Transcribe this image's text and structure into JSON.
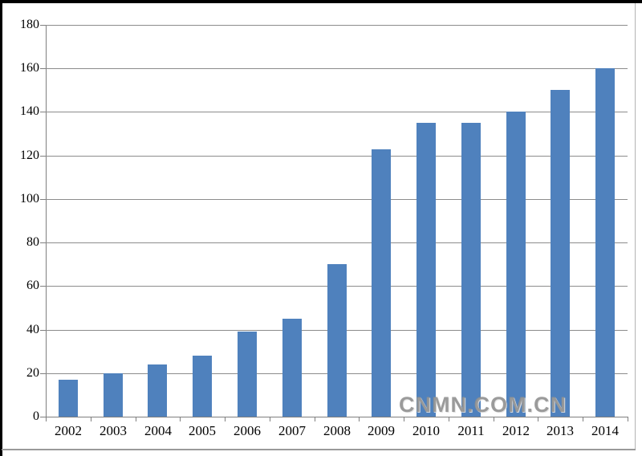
{
  "watermark": {
    "text": "CNMN.COM.CN"
  },
  "chart_data": {
    "type": "bar",
    "title": "",
    "xlabel": "",
    "ylabel": "",
    "categories": [
      "2002",
      "2003",
      "2004",
      "2005",
      "2006",
      "2007",
      "2008",
      "2009",
      "2010",
      "2011",
      "2012",
      "2013",
      "2014"
    ],
    "values": [
      17,
      20,
      24,
      28,
      39,
      45,
      70,
      123,
      135,
      135,
      140,
      150,
      160
    ],
    "ylim": [
      0,
      180
    ],
    "y_ticks": [
      0,
      20,
      40,
      60,
      80,
      100,
      120,
      140,
      160,
      180
    ],
    "grid": "horizontal",
    "legend": "none",
    "bar_color": "#4f81bd",
    "gridline_color": "#8c8c8c",
    "axis_color": "#7f7f7f",
    "text_color": "#000000",
    "frame_border_color": "#000000",
    "watermark_color": "#8f8f8f"
  }
}
